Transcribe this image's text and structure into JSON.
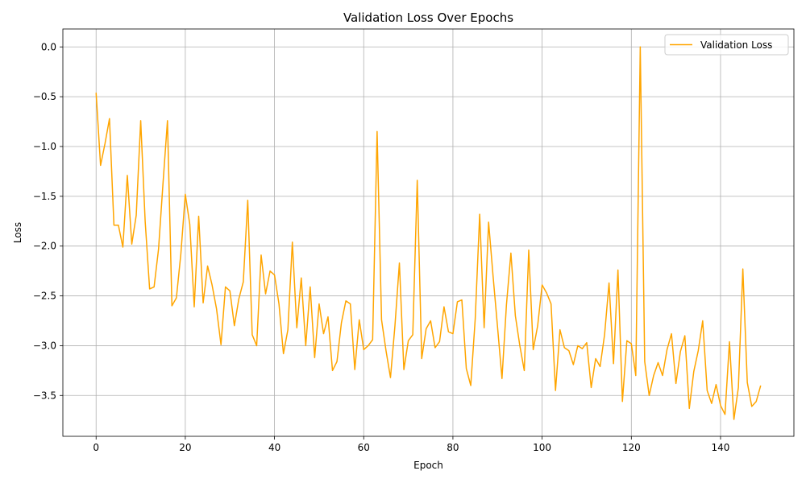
{
  "chart_data": {
    "type": "line",
    "title": "Validation Loss Over Epochs",
    "xlabel": "Epoch",
    "ylabel": "Loss",
    "xlim": [
      -7.45,
      156.45
    ],
    "ylim": [
      -3.91,
      0.18
    ],
    "xticks": [
      0,
      20,
      40,
      60,
      80,
      100,
      120,
      140
    ],
    "xtick_labels": [
      "0",
      "20",
      "40",
      "60",
      "80",
      "100",
      "120",
      "140"
    ],
    "yticks": [
      0.0,
      -0.5,
      -1.0,
      -1.5,
      -2.0,
      -2.5,
      -3.0,
      -3.5
    ],
    "ytick_labels": [
      "0.0",
      "−0.5",
      "−1.0",
      "−1.5",
      "−2.0",
      "−2.5",
      "−3.0",
      "−3.5"
    ],
    "grid": true,
    "legend_position": "upper right",
    "series": [
      {
        "name": "Validation Loss",
        "color": "#ffa500",
        "x_start": 0,
        "x_step": 1,
        "values": [
          -0.46,
          -1.19,
          -0.97,
          -0.72,
          -1.79,
          -1.79,
          -2.01,
          -1.29,
          -1.98,
          -1.69,
          -0.74,
          -1.75,
          -2.43,
          -2.41,
          -2.03,
          -1.37,
          -0.74,
          -2.6,
          -2.52,
          -2.08,
          -1.48,
          -1.78,
          -2.61,
          -1.7,
          -2.57,
          -2.2,
          -2.39,
          -2.63,
          -2.99,
          -2.41,
          -2.45,
          -2.8,
          -2.53,
          -2.36,
          -1.54,
          -2.89,
          -3.0,
          -2.09,
          -2.48,
          -2.25,
          -2.29,
          -2.58,
          -3.08,
          -2.84,
          -1.96,
          -2.82,
          -2.32,
          -3.0,
          -2.41,
          -3.12,
          -2.58,
          -2.88,
          -2.71,
          -3.25,
          -3.16,
          -2.77,
          -2.55,
          -2.58,
          -3.24,
          -2.74,
          -3.04,
          -3.0,
          -2.94,
          -0.85,
          -2.74,
          -3.05,
          -3.32,
          -2.8,
          -2.17,
          -3.24,
          -2.95,
          -2.89,
          -1.34,
          -3.13,
          -2.83,
          -2.75,
          -3.02,
          -2.96,
          -2.61,
          -2.86,
          -2.88,
          -2.56,
          -2.54,
          -3.23,
          -3.4,
          -2.73,
          -1.68,
          -2.82,
          -1.76,
          -2.3,
          -2.81,
          -3.33,
          -2.59,
          -2.07,
          -2.7,
          -3.0,
          -3.25,
          -2.04,
          -3.04,
          -2.8,
          -2.39,
          -2.47,
          -2.58,
          -3.45,
          -2.84,
          -3.02,
          -3.05,
          -3.19,
          -3.0,
          -3.03,
          -2.97,
          -3.42,
          -3.13,
          -3.21,
          -2.89,
          -2.37,
          -3.18,
          -2.24,
          -3.56,
          -2.95,
          -2.98,
          -3.3,
          0.0,
          -3.16,
          -3.5,
          -3.3,
          -3.17,
          -3.3,
          -3.04,
          -2.88,
          -3.38,
          -3.06,
          -2.9,
          -3.63,
          -3.26,
          -3.05,
          -2.75,
          -3.45,
          -3.58,
          -3.39,
          -3.6,
          -3.69,
          -2.96,
          -3.74,
          -3.42,
          -2.23,
          -3.37,
          -3.61,
          -3.56,
          -3.4
        ]
      }
    ]
  }
}
